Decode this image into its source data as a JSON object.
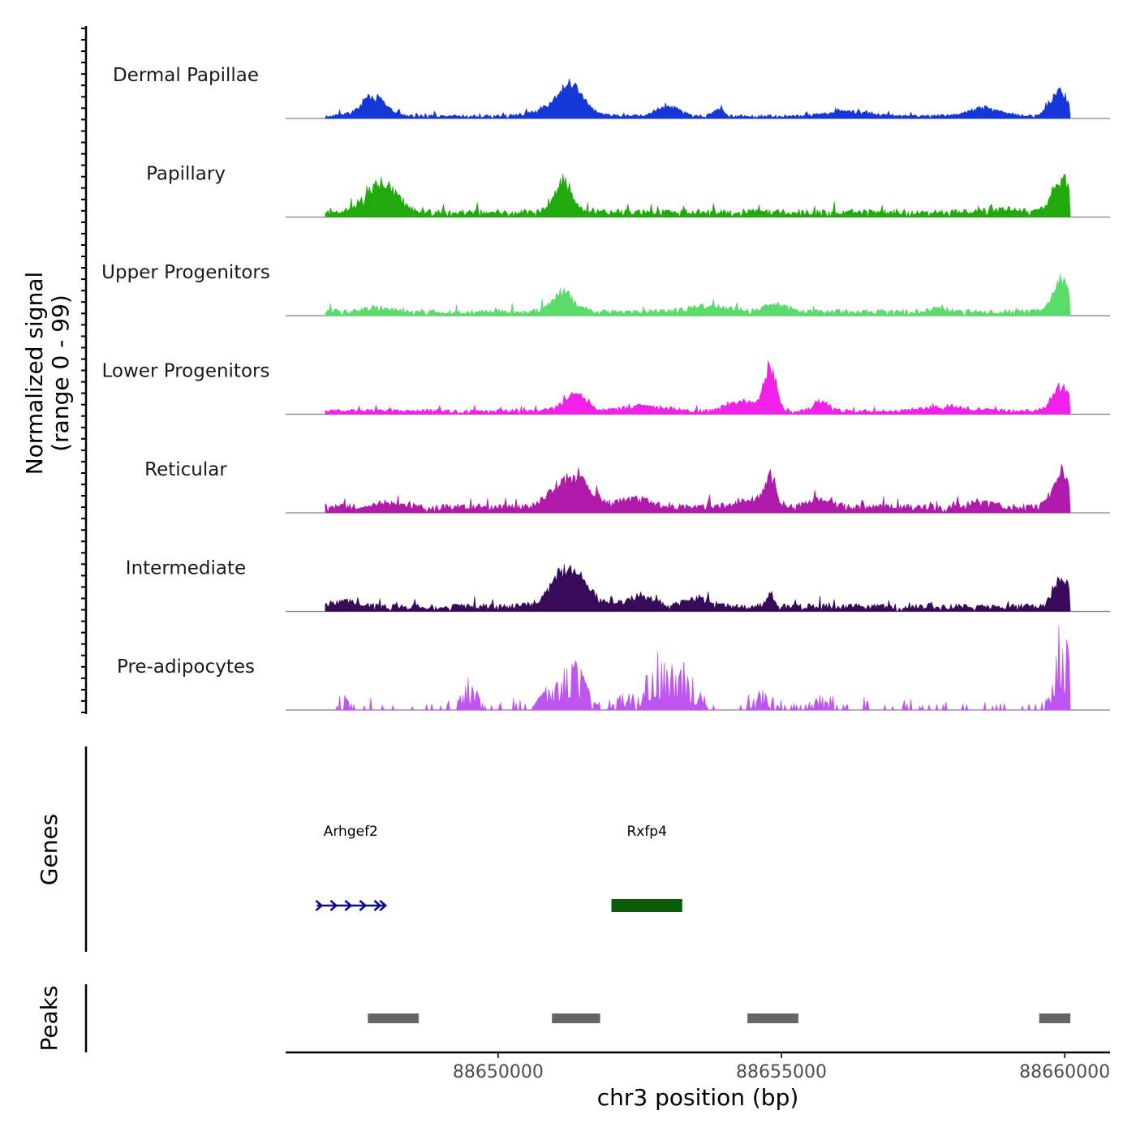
{
  "chart_data": {
    "type": "area",
    "title": "",
    "ylabel_line1": "Normalized signal",
    "ylabel_line2": "(range 0 - 99)",
    "xlabel": "chr3 position (bp)",
    "xlim": [
      88646250,
      88660800
    ],
    "x_ticks": [
      88650000,
      88655000,
      88660000
    ],
    "x_tick_labels": [
      "88650000",
      "88655000",
      "88660000"
    ],
    "signal_range": [
      0,
      99
    ],
    "track_x_start": 88646950,
    "track_x_end": 88660100,
    "tracks": [
      {
        "name": "Dermal Papillae",
        "color": "#1637d8",
        "baseline": 3,
        "peaks": [
          [
            88647800,
            22,
            300
          ],
          [
            88651300,
            26,
            280
          ],
          [
            88651100,
            12,
            500
          ],
          [
            88653000,
            12,
            280
          ],
          [
            88653900,
            9,
            120
          ],
          [
            88659900,
            28,
            220
          ],
          [
            88656200,
            6,
            500
          ],
          [
            88658600,
            9,
            400
          ]
        ]
      },
      {
        "name": "Papillary",
        "color": "#20aa0e",
        "baseline": 6,
        "peaks": [
          [
            88647950,
            33,
            380
          ],
          [
            88651150,
            36,
            220
          ],
          [
            88659950,
            40,
            230
          ],
          [
            88658900,
            4,
            400
          ]
        ]
      },
      {
        "name": "Upper Progenitors",
        "color": "#5bdc6a",
        "baseline": 5,
        "peaks": [
          [
            88651150,
            22,
            260
          ],
          [
            88654900,
            9,
            300
          ],
          [
            88653700,
            6,
            500
          ],
          [
            88657800,
            5,
            200
          ],
          [
            88659950,
            33,
            230
          ],
          [
            88647900,
            5,
            300
          ]
        ]
      },
      {
        "name": "Lower Progenitors",
        "color": "#f221e9",
        "baseline": 4,
        "peaks": [
          [
            88651350,
            22,
            280
          ],
          [
            88654800,
            48,
            150
          ],
          [
            88654300,
            12,
            350
          ],
          [
            88655700,
            10,
            200
          ],
          [
            88657900,
            5,
            600
          ],
          [
            88659950,
            28,
            230
          ],
          [
            88652600,
            6,
            500
          ]
        ]
      },
      {
        "name": "Reticular",
        "color": "#b01aaa",
        "baseline": 7,
        "peaks": [
          [
            88651300,
            35,
            420
          ],
          [
            88654800,
            32,
            150
          ],
          [
            88654400,
            9,
            300
          ],
          [
            88655700,
            10,
            300
          ],
          [
            88652400,
            10,
            400
          ],
          [
            88659950,
            39,
            230
          ],
          [
            88658500,
            7,
            300
          ],
          [
            88648100,
            6,
            400
          ]
        ]
      },
      {
        "name": "Intermediate",
        "color": "#380a5a",
        "baseline": 6,
        "peaks": [
          [
            88651250,
            42,
            420
          ],
          [
            88654800,
            13,
            100
          ],
          [
            88652500,
            12,
            300
          ],
          [
            88659950,
            32,
            220
          ],
          [
            88653500,
            9,
            300
          ],
          [
            88647300,
            6,
            300
          ]
        ]
      },
      {
        "name": "Pre-adipocytes",
        "color": "#bf55f0",
        "baseline": 0,
        "peaks": [
          [
            88651300,
            55,
            300
          ],
          [
            88652800,
            58,
            250
          ],
          [
            88653300,
            40,
            250
          ],
          [
            88649500,
            28,
            200
          ],
          [
            88650800,
            18,
            150
          ],
          [
            88654700,
            18,
            200
          ],
          [
            88655700,
            14,
            200
          ],
          [
            88659950,
            88,
            180
          ],
          [
            88647300,
            12,
            150
          ],
          [
            88652200,
            15,
            200
          ]
        ]
      }
    ],
    "genes_label": "Genes",
    "genes": [
      {
        "name": "Arhgef2",
        "start": 88646800,
        "end": 88648000,
        "strand": "+",
        "color": "#0b0b8c"
      },
      {
        "name": "Rxfp4",
        "start": 88652000,
        "end": 88653250,
        "strand": "+",
        "color": "#0a5c0a"
      }
    ],
    "peaks_label": "Peaks",
    "peak_color": "#666666",
    "peak_regions": [
      [
        88647700,
        88648600
      ],
      [
        88650950,
        88651800
      ],
      [
        88654400,
        88655300
      ],
      [
        88659550,
        88660100
      ]
    ]
  }
}
